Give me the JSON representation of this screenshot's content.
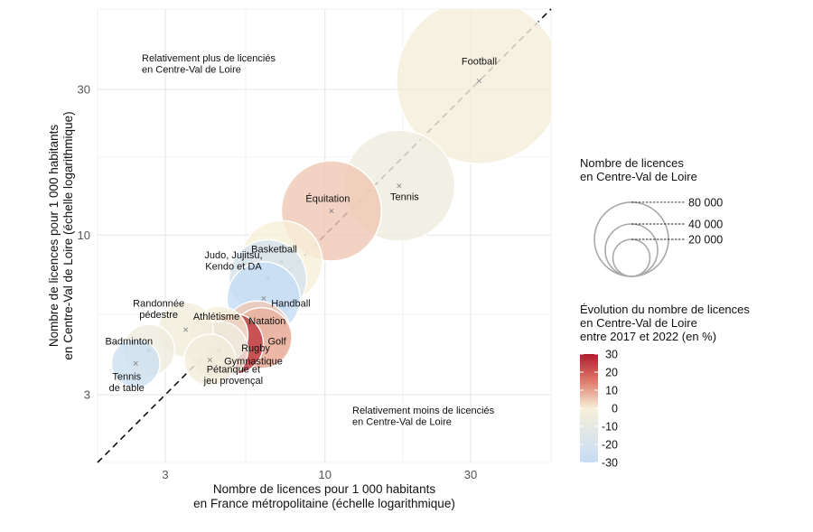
{
  "chart_data": {
    "type": "scatter",
    "x_scale": "log",
    "y_scale": "log",
    "xlim": [
      1.8,
      55
    ],
    "ylim": [
      1.8,
      55
    ],
    "x_ticks": [
      3,
      10,
      30
    ],
    "y_ticks": [
      3,
      10,
      30
    ],
    "xlabel": [
      "Nombre de licences pour 1 000 habitants",
      "en France métropolitaine (échelle logarithmique)"
    ],
    "ylabel": [
      "Nombre de licences pour 1 000 habitants",
      "en Centre-Val de Loire (échelle logarithmique)"
    ],
    "annotations": {
      "upper": [
        "Relativement plus de licenciés",
        "en Centre-Val de Loire"
      ],
      "lower": [
        "Relativement moins de licenciés",
        "en Centre-Val de Loire"
      ]
    },
    "reference_line": "y = x",
    "grid": true,
    "points": [
      {
        "label": [
          "Football"
        ],
        "x": 32.0,
        "y": 32.0,
        "licences": 82000,
        "evolution": -2
      },
      {
        "label": [
          "Tennis"
        ],
        "x": 17.5,
        "y": 14.5,
        "licences": 37000,
        "evolution": -5
      },
      {
        "label": [
          "Équitation"
        ],
        "x": 10.5,
        "y": 12.0,
        "licences": 30000,
        "evolution": 5
      },
      {
        "label": [
          "Basketball"
        ],
        "x": 7.2,
        "y": 8.2,
        "licences": 20000,
        "evolution": 0
      },
      {
        "label": [
          "Judo, Jujitsu,",
          "Kendo et DA"
        ],
        "x": 6.5,
        "y": 7.2,
        "licences": 18000,
        "evolution": -20
      },
      {
        "label": [
          "Handball"
        ],
        "x": 6.3,
        "y": 6.2,
        "licences": 16000,
        "evolution": -30
      },
      {
        "label": [
          "Natation"
        ],
        "x": 6.0,
        "y": 4.7,
        "licences": 14000,
        "evolution": 5
      },
      {
        "label": [
          "Golf"
        ],
        "x": 6.2,
        "y": 4.6,
        "licences": 11000,
        "evolution": 8
      },
      {
        "label": [
          "Rugby"
        ],
        "x": 5.0,
        "y": 4.4,
        "licences": 11000,
        "evolution": 25
      },
      {
        "label": [
          "Athlétisme"
        ],
        "x": 4.5,
        "y": 4.7,
        "licences": 10000,
        "evolution": 0
      },
      {
        "label": [
          "Gymnastique"
        ],
        "x": 4.5,
        "y": 4.2,
        "licences": 10000,
        "evolution": -5
      },
      {
        "label": [
          "Pétanque et",
          "jeu provençal"
        ],
        "x": 4.2,
        "y": 3.9,
        "licences": 8000,
        "evolution": -3
      },
      {
        "label": [
          "Randonnée",
          "pédestre"
        ],
        "x": 3.5,
        "y": 4.9,
        "licences": 9000,
        "evolution": -3
      },
      {
        "label": [
          "Badminton"
        ],
        "x": 2.65,
        "y": 4.2,
        "licences": 8000,
        "evolution": -5
      },
      {
        "label": [
          "Tennis",
          "de table"
        ],
        "x": 2.4,
        "y": 3.8,
        "licences": 7000,
        "evolution": -25
      }
    ],
    "size_legend": {
      "title": [
        "Nombre de licences",
        "en Centre-Val de Loire"
      ],
      "values": [
        80000,
        40000,
        20000
      ],
      "labels": [
        "80 000",
        "40 000",
        "20 000"
      ]
    },
    "color_legend": {
      "title": [
        "Évolution du nombre de licences",
        "en Centre-Val de Loire",
        "entre 2017 et 2022 (en %)"
      ],
      "range": [
        -30,
        30
      ],
      "ticks": [
        30,
        20,
        10,
        0,
        -10,
        -20,
        -30
      ],
      "colors": [
        "#cfe1f5",
        "#f7efd9",
        "#b01c2e"
      ]
    }
  }
}
